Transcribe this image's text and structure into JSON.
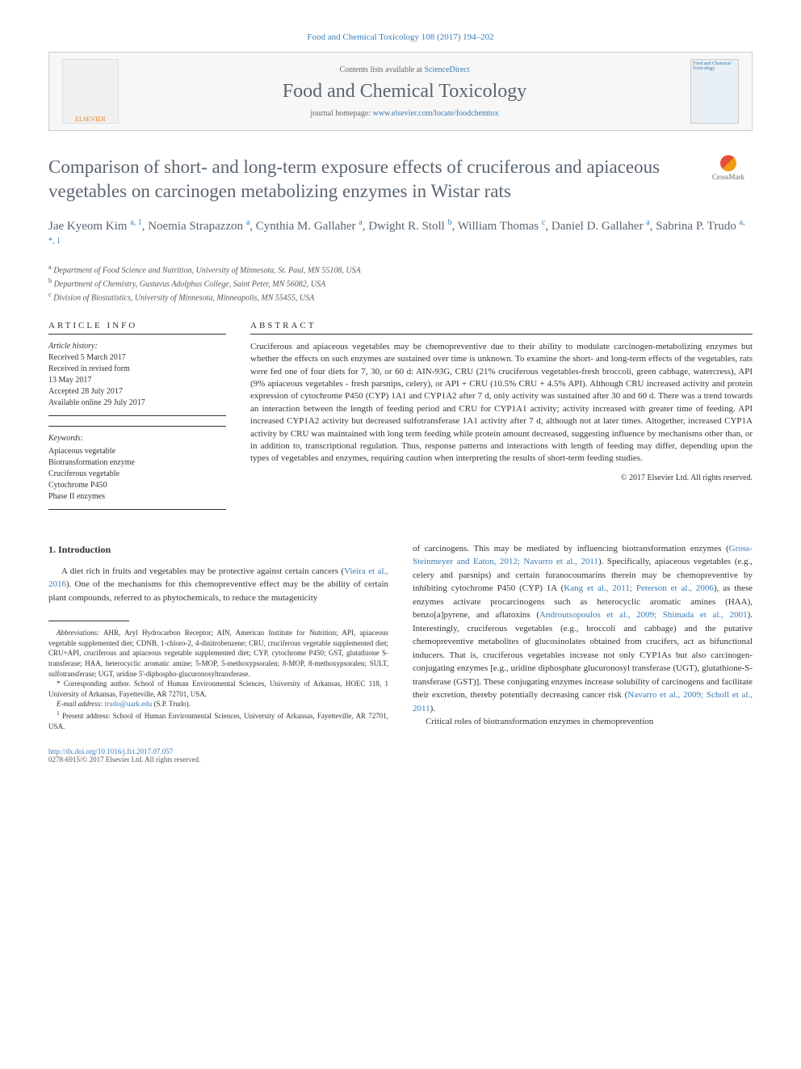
{
  "citation": "Food and Chemical Toxicology 108 (2017) 194–202",
  "header": {
    "contents_prefix": "Contents lists available at ",
    "contents_link": "ScienceDirect",
    "journal_name": "Food and Chemical Toxicology",
    "homepage_prefix": "journal homepage: ",
    "homepage_link": "www.elsevier.com/locate/foodchemtox",
    "publisher_logo_text": "ELSEVIER",
    "cover_text": "Food and Chemical Toxicology"
  },
  "crossmark_label": "CrossMark",
  "title": "Comparison of short- and long-term exposure effects of cruciferous and apiaceous vegetables on carcinogen metabolizing enzymes in Wistar rats",
  "authors_html": "Jae Kyeom Kim <sup>a, 1</sup>, Noemia Strapazzon <sup>a</sup>, Cynthia M. Gallaher <sup>a</sup>, Dwight R. Stoll <sup>b</sup>, William Thomas <sup>c</sup>, Daniel D. Gallaher <sup>a</sup>, Sabrina P. Trudo <sup>a, *, 1</sup>",
  "affiliations": [
    {
      "sup": "a",
      "text": "Department of Food Science and Nutrition, University of Minnesota, St. Paul, MN 55108, USA"
    },
    {
      "sup": "b",
      "text": "Department of Chemistry, Gustavus Adolphus College, Saint Peter, MN 56082, USA"
    },
    {
      "sup": "c",
      "text": "Division of Biostatistics, University of Minnesota, Minneapolis, MN 55455, USA"
    }
  ],
  "article_info_label": "ARTICLE INFO",
  "abstract_label": "ABSTRACT",
  "history": {
    "label": "Article history:",
    "lines": [
      "Received 5 March 2017",
      "Received in revised form",
      "13 May 2017",
      "Accepted 28 July 2017",
      "Available online 29 July 2017"
    ]
  },
  "keywords": {
    "label": "Keywords:",
    "items": [
      "Apiaceous vegetable",
      "Biotransformation enzyme",
      "Cruciferous vegetable",
      "Cytochrome P450",
      "Phase II enzymes"
    ]
  },
  "abstract_text": "Cruciferous and apiaceous vegetables may be chemopreventive due to their ability to modulate carcinogen-metabolizing enzymes but whether the effects on such enzymes are sustained over time is unknown. To examine the short- and long-term effects of the vegetables, rats were fed one of four diets for 7, 30, or 60 d: AIN-93G, CRU (21% cruciferous vegetables-fresh broccoli, green cabbage, watercress), API (9% apiaceous vegetables - fresh parsnips, celery), or API + CRU (10.5% CRU + 4.5% API). Although CRU increased activity and protein expression of cytochrome P450 (CYP) 1A1 and CYP1A2 after 7 d, only activity was sustained after 30 and 60 d. There was a trend towards an interaction between the length of feeding period and CRU for CYP1A1 activity; activity increased with greater time of feeding. API increased CYP1A2 activity but decreased sulfotransferase 1A1 activity after 7 d, although not at later times. Altogether, increased CYP1A activity by CRU was maintained with long term feeding while protein amount decreased, suggesting influence by mechanisms other than, or in addition to, transcriptional regulation. Thus, response patterns and interactions with length of feeding may differ, depending upon the types of vegetables and enzymes, requiring caution when interpreting the results of short-term feeding studies.",
  "copyright": "© 2017 Elsevier Ltd. All rights reserved.",
  "intro": {
    "heading": "1. Introduction",
    "p1_pre": "A diet rich in fruits and vegetables may be protective against certain cancers (",
    "p1_ref": "Vieira et al., 2016",
    "p1_post": "). One of the mechanisms for this chemopreventive effect may be the ability of certain plant compounds, referred to as phytochemicals, to reduce the mutagenicity"
  },
  "col2": {
    "p1": "of carcinogens. This may be mediated by influencing biotransformation enzymes (",
    "ref1": "Gross-Steinmeyer and Eaton, 2012; Navarro et al., 2011",
    "p2": "). Specifically, apiaceous vegetables (e.g., celery and parsnips) and certain furanocoumarins therein may be chemopreventive by inhibiting cytochrome P450 (CYP) 1A (",
    "ref2": "Kang et al., 2011; Peterson et al., 2006",
    "p3": "), as these enzymes activate procarcinogens such as heterocyclic aromatic amines (HAA), benzo[a]pyrene, and aflatoxins (",
    "ref3": "Androutsopoulos et al., 2009; Shimada et al., 2001",
    "p4": "). Interestingly, cruciferous vegetables (e.g., broccoli and cabbage) and the putative chemopreventive metabolites of glucosinolates obtained from crucifers, act as bifunctional inducers. That is, cruciferous vegetables increase not only CYP1As but also carcinogen-conjugating enzymes [e.g., uridine diphosphate glucuronosyl transferase (UGT), glutathione-S-transferase (GST)]. These conjugating enzymes increase solubility of carcinogens and facilitate their excretion, thereby potentially decreasing cancer risk (",
    "ref4": "Navarro et al., 2009; Scholl et al., 2011",
    "p5": ").",
    "p6": "Critical roles of biotransformation enzymes in chemoprevention"
  },
  "footnotes": {
    "abbrev_label": "Abbreviations:",
    "abbrev_text": " AHR, Aryl Hydrocarbon Receptor; AIN, American Institute for Nutrition; API, apiaceous vegetable supplemented diet; CDNB, 1-chloro-2, 4-dinitrobenzene; CRU, cruciferous vegetable supplemented diet; CRU+API, cruciferous and apiaceous vegetable supplemented diet; CYP, cytochrome P450; GST, glutathione S-transferase; HAA, heterocyclic aromatic amine; 5-MOP, 5-methoxypsoralen; 8-MOP, 8-methoxypsoralen; SULT, sulfotransferase; UGT, uridine 5'-diphospho-glucuronosyltransferase.",
    "corr_label": "* Corresponding author. ",
    "corr_text": "School of Human Environmental Sciences, University of Arkansas, HOEC 118, 1 University of Arkansas, Fayetteville, AR 72701, USA.",
    "email_label": "E-mail address: ",
    "email": "trudo@uark.edu",
    "email_suffix": " (S.P. Trudo).",
    "present_sup": "1",
    "present_text": " Present address: School of Human Environmental Sciences, University of Arkansas, Fayetteville, AR 72701, USA."
  },
  "footer": {
    "doi": "http://dx.doi.org/10.1016/j.fct.2017.07.057",
    "issn_line": "0278-6915/© 2017 Elsevier Ltd. All rights reserved."
  }
}
